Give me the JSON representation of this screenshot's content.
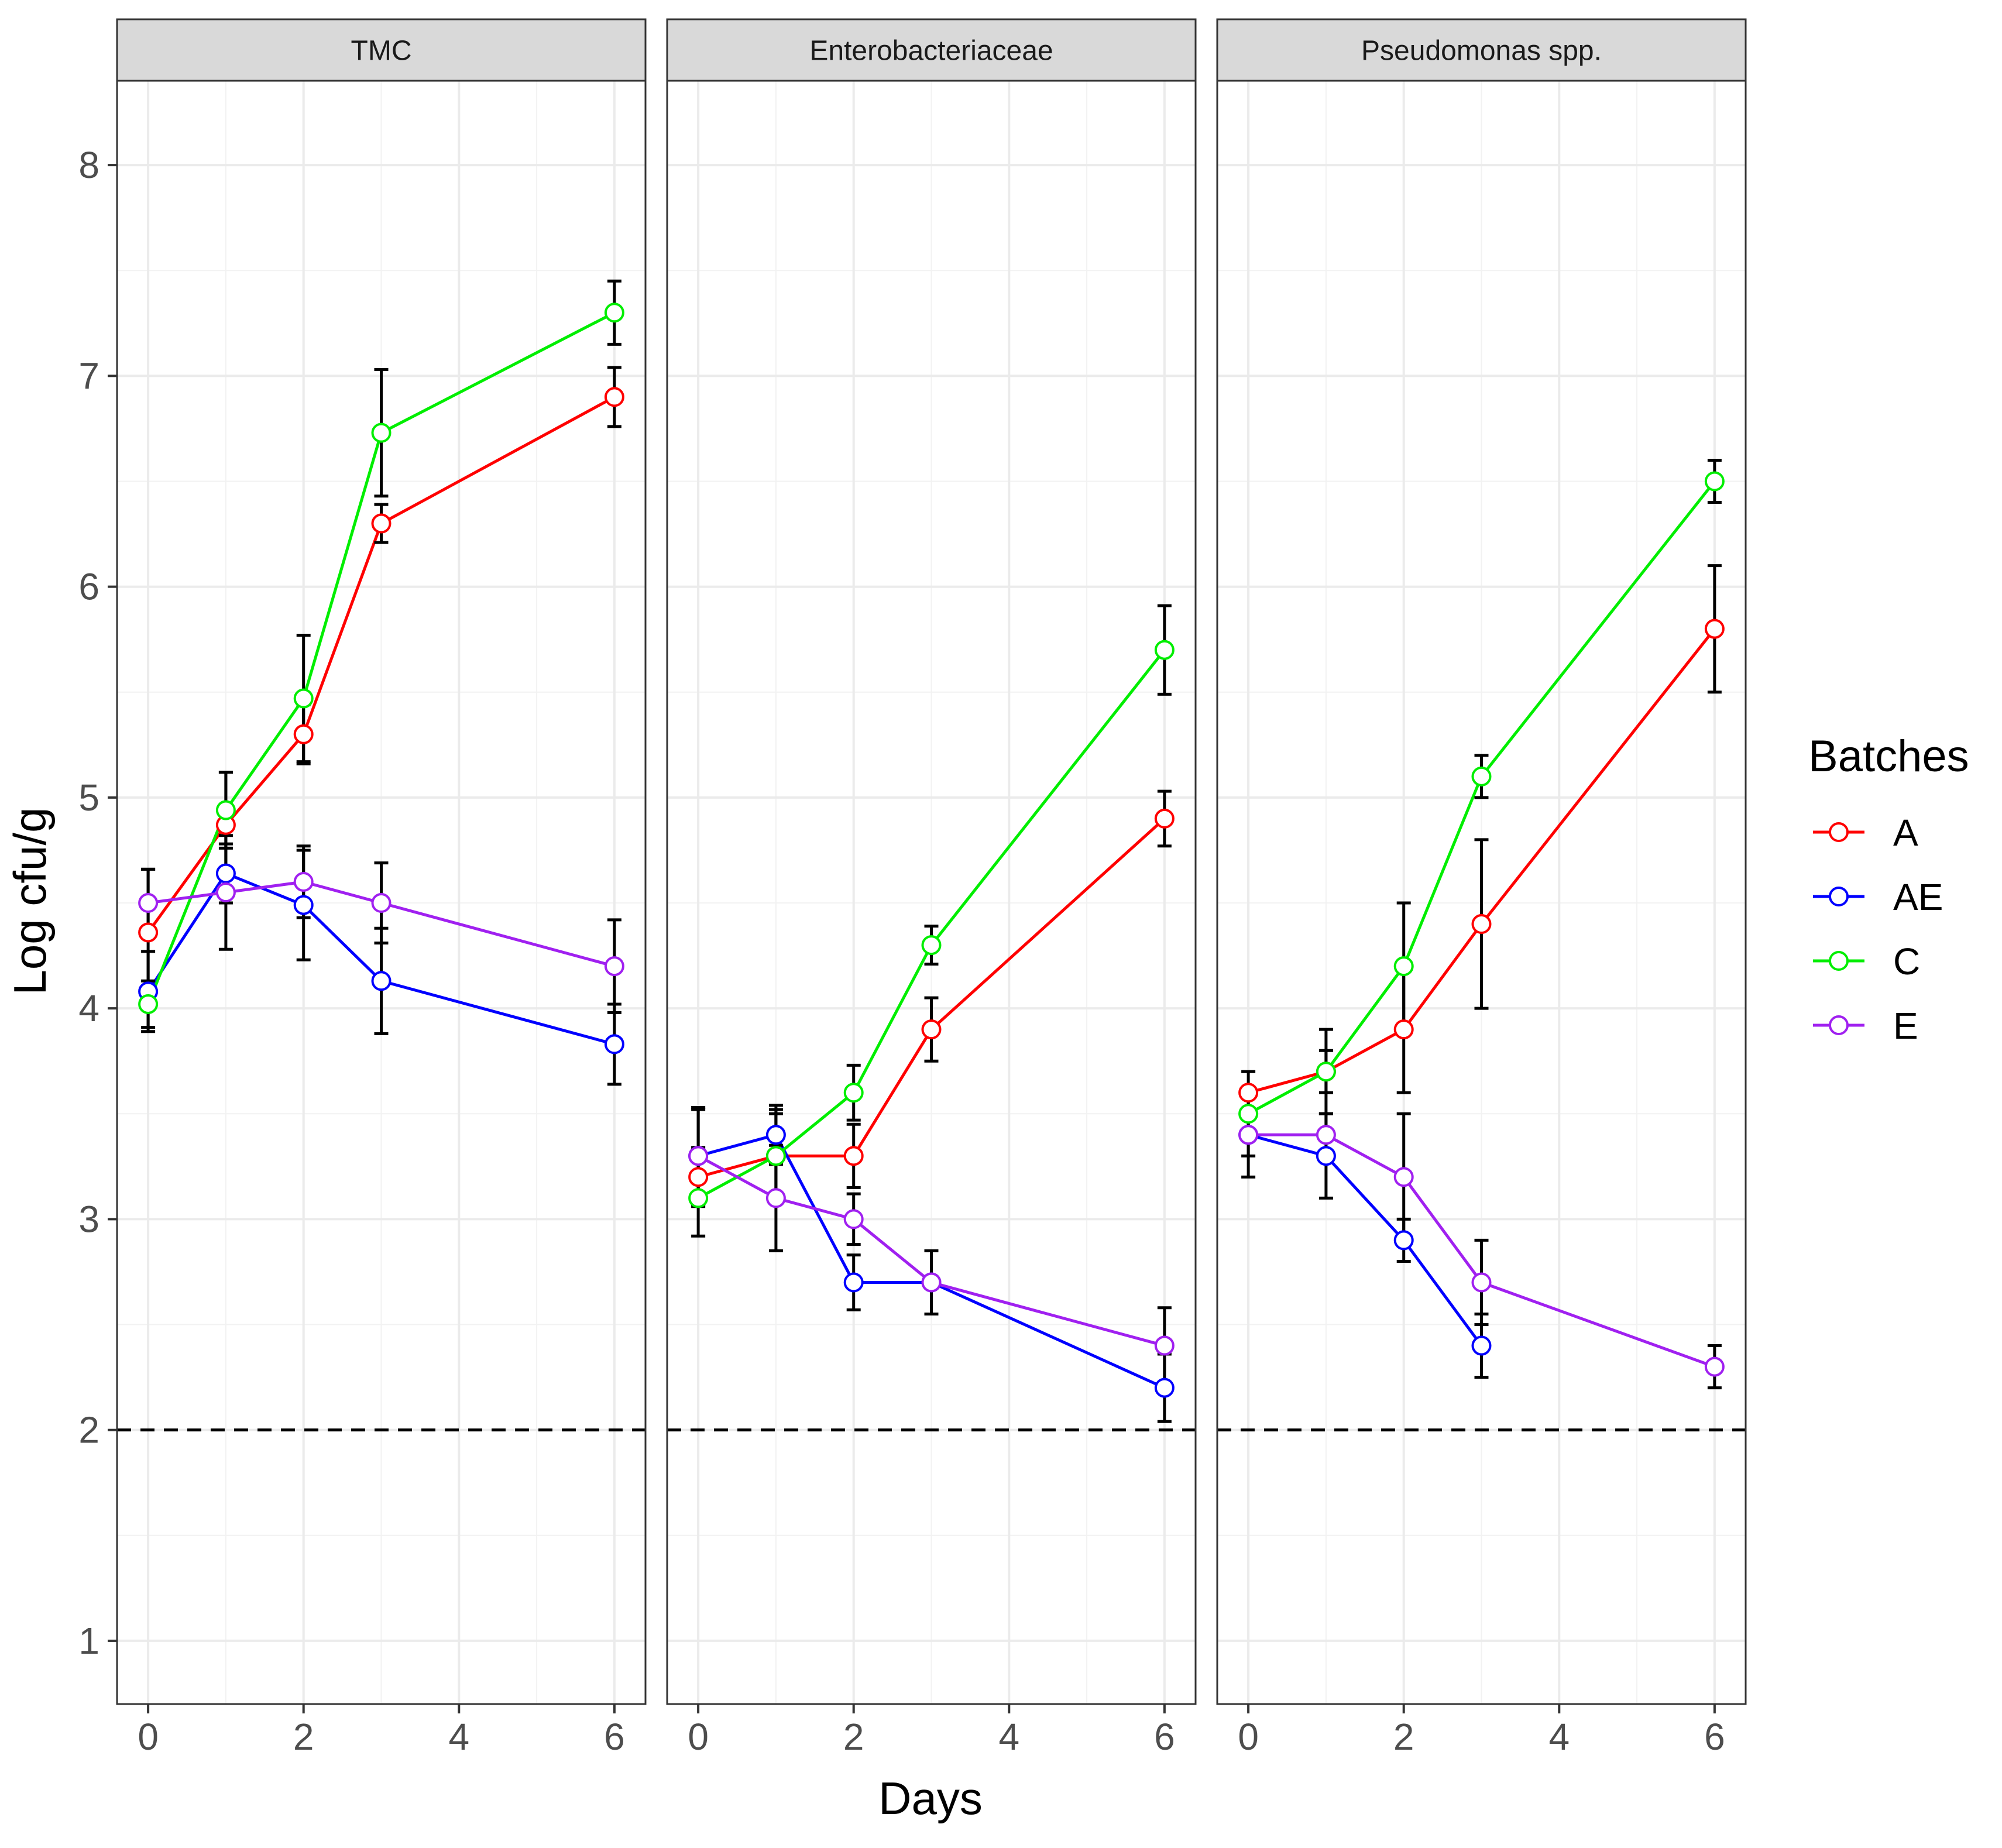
{
  "chart_data": {
    "type": "line",
    "xlabel": "Days",
    "ylabel": "Log cfu/g",
    "xlim": [
      -0.4,
      6.4
    ],
    "ylim": [
      0.7,
      8.4
    ],
    "x_ticks": [
      0,
      2,
      4,
      6
    ],
    "x_tick_labels": [
      "0",
      "2",
      "4",
      "6"
    ],
    "y_ticks": [
      1,
      2,
      3,
      4,
      5,
      6,
      7,
      8
    ],
    "y_tick_labels": [
      "1",
      "2",
      "3",
      "4",
      "5",
      "6",
      "7",
      "8"
    ],
    "reference_line": {
      "y": 2,
      "style": "dashed"
    },
    "grid": true,
    "legend": {
      "title": "Batches",
      "position": "right",
      "entries": [
        {
          "label": "A",
          "color": "#ff0000"
        },
        {
          "label": "AE",
          "color": "#0000ff"
        },
        {
          "label": "C",
          "color": "#00ee00"
        },
        {
          "label": "E",
          "color": "#a020f0"
        }
      ]
    },
    "panels": [
      {
        "title": "TMC",
        "series": [
          {
            "name": "A",
            "color": "#ff0000",
            "x": [
              0,
              1,
              2,
              3,
              6
            ],
            "y": [
              4.36,
              4.87,
              5.3,
              6.3,
              6.9
            ],
            "err": [
              0.3,
              0.25,
              0.14,
              0.09,
              0.14
            ]
          },
          {
            "name": "AE",
            "color": "#0000ff",
            "x": [
              0,
              1,
              2,
              3,
              6
            ],
            "y": [
              4.08,
              4.64,
              4.49,
              4.13,
              3.83
            ],
            "err": [
              0.19,
              0.14,
              0.26,
              0.25,
              0.19
            ]
          },
          {
            "name": "C",
            "color": "#00ee00",
            "x": [
              0,
              1,
              2,
              3,
              6
            ],
            "y": [
              4.02,
              4.94,
              5.47,
              6.73,
              7.3
            ],
            "err": [
              0.11,
              0.18,
              0.3,
              0.3,
              0.15
            ]
          },
          {
            "name": "E",
            "color": "#a020f0",
            "x": [
              0,
              1,
              2,
              3,
              6
            ],
            "y": [
              4.5,
              4.55,
              4.6,
              4.5,
              4.2
            ],
            "err": [
              0.16,
              0.27,
              0.17,
              0.19,
              0.22
            ]
          }
        ]
      },
      {
        "title": "Enterobacteriaceae",
        "series": [
          {
            "name": "A",
            "color": "#ff0000",
            "x": [
              0,
              1,
              2,
              3,
              6
            ],
            "y": [
              3.2,
              3.3,
              3.3,
              3.9,
              4.9
            ],
            "err": [
              0.14,
              0.2,
              0.15,
              0.15,
              0.13
            ]
          },
          {
            "name": "AE",
            "color": "#0000ff",
            "x": [
              0,
              1,
              2,
              3,
              6
            ],
            "y": [
              3.3,
              3.4,
              2.7,
              2.7,
              2.2
            ],
            "err": [
              0.22,
              0.14,
              0.13,
              0.15,
              0.16
            ]
          },
          {
            "name": "C",
            "color": "#00ee00",
            "x": [
              0,
              1,
              2,
              3,
              6
            ],
            "y": [
              3.1,
              3.3,
              3.6,
              4.3,
              5.7
            ],
            "err": [
              0.18,
              0.22,
              0.13,
              0.09,
              0.21
            ]
          },
          {
            "name": "E",
            "color": "#a020f0",
            "x": [
              0,
              1,
              2,
              3,
              6
            ],
            "y": [
              3.3,
              3.1,
              3.0,
              2.7,
              2.4
            ],
            "err": [
              0.23,
              0.25,
              0.12,
              0.15,
              0.18
            ]
          }
        ]
      },
      {
        "title": "Pseudomonas spp.",
        "series": [
          {
            "name": "A",
            "color": "#ff0000",
            "x": [
              0,
              1,
              2,
              3,
              6
            ],
            "y": [
              3.6,
              3.7,
              3.9,
              4.4,
              5.8
            ],
            "err": [
              0.1,
              0.2,
              0.3,
              0.4,
              0.3
            ]
          },
          {
            "name": "AE",
            "color": "#0000ff",
            "x": [
              0,
              1,
              2,
              3
            ],
            "y": [
              3.4,
              3.3,
              2.9,
              2.4
            ],
            "err": [
              0.2,
              0.2,
              0.1,
              0.15
            ]
          },
          {
            "name": "C",
            "color": "#00ee00",
            "x": [
              0,
              1,
              2,
              3,
              6
            ],
            "y": [
              3.5,
              3.7,
              4.2,
              5.1,
              6.5
            ],
            "err": [
              0.1,
              0.1,
              0.3,
              0.1,
              0.1
            ]
          },
          {
            "name": "E",
            "color": "#a020f0",
            "x": [
              0,
              1,
              2,
              3,
              6
            ],
            "y": [
              3.4,
              3.4,
              3.2,
              2.7,
              2.3
            ],
            "err": [
              0.1,
              0.1,
              0.3,
              0.2,
              0.1
            ]
          }
        ]
      }
    ]
  }
}
